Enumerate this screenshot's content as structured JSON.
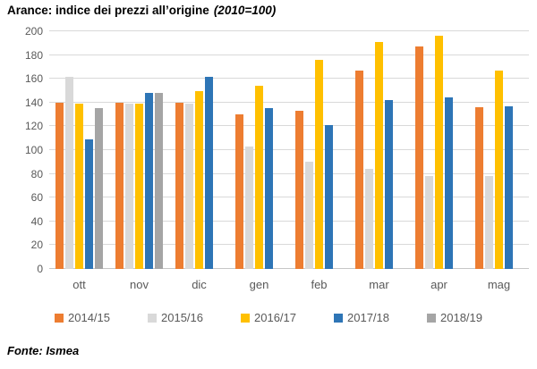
{
  "title": {
    "main": "Arance: indice dei prezzi all’origine",
    "suffix": "(2010=100)"
  },
  "footer": {
    "source": "Fonte: Ismea"
  },
  "chart_data": {
    "type": "bar",
    "title": "Arance: indice dei prezzi all’origine (2010=100)",
    "categories": [
      "ott",
      "nov",
      "dic",
      "gen",
      "feb",
      "mar",
      "apr",
      "mag"
    ],
    "series": [
      {
        "name": "2014/15",
        "color": "#ED7D31",
        "values": [
          140,
          140,
          140,
          130,
          133,
          167,
          187,
          136
        ]
      },
      {
        "name": "2015/16",
        "color": "#D9D9D9",
        "values": [
          162,
          139,
          139,
          103,
          90,
          84,
          78,
          78
        ]
      },
      {
        "name": "2016/17",
        "color": "#FFC000",
        "values": [
          139,
          139,
          150,
          154,
          176,
          191,
          196,
          167
        ]
      },
      {
        "name": "2017/18",
        "color": "#2E75B6",
        "values": [
          109,
          148,
          162,
          135,
          121,
          142,
          144,
          137
        ]
      },
      {
        "name": "2018/19",
        "color": "#A5A5A5",
        "values": [
          135,
          148,
          null,
          null,
          null,
          null,
          null,
          null
        ]
      }
    ],
    "xlabel": "",
    "ylabel": "",
    "ylim": [
      0,
      200
    ],
    "ytick_step": 20,
    "grid": true,
    "legend_position": "bottom",
    "gridline_color": "#D9D9D9",
    "axis_text_color": "#595959"
  }
}
